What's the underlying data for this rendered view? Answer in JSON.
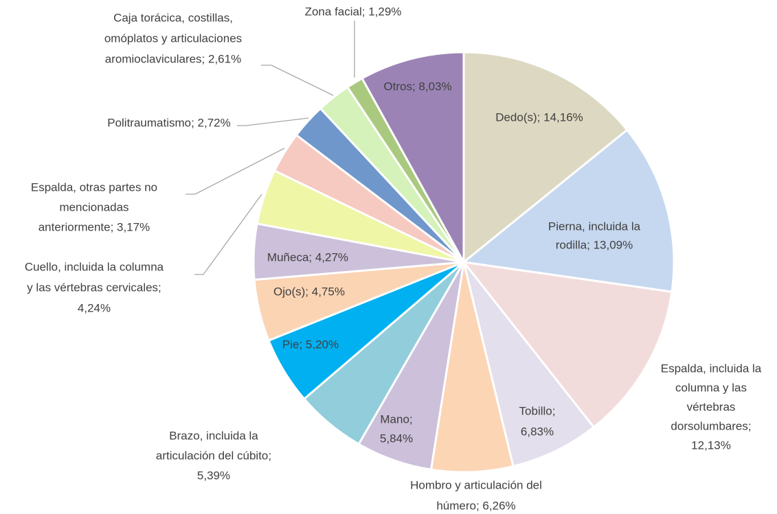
{
  "chart_data": {
    "type": "pie",
    "values": [
      14.16,
      13.09,
      12.13,
      6.83,
      6.26,
      5.84,
      5.39,
      5.2,
      4.75,
      4.27,
      4.24,
      3.17,
      2.72,
      2.61,
      1.29,
      8.03
    ],
    "value_labels": [
      [
        "Dedo(s); 14,16%"
      ],
      [
        "Pierna, incluida la",
        "rodilla; 13,09%"
      ],
      [
        "Espalda, incluida la",
        "columna y las",
        "vértebras",
        "dorsolumbares;",
        "12,13%"
      ],
      [
        "Tobillo;",
        "6,83%"
      ],
      [
        "Hombro y articulación del",
        "húmero; 6,26%"
      ],
      [
        "Mano;",
        "5,84%"
      ],
      [
        "Brazo, incluida la",
        "articulación del cúbito;",
        "5,39%"
      ],
      [
        "Pie; 5,20%"
      ],
      [
        "Ojo(s); 4,75%"
      ],
      [
        "Muñeca; 4,27%"
      ],
      [
        "Cuello, incluida la columna",
        "y las vértebras cervicales;",
        "4,24%"
      ],
      [
        "Espalda, otras partes no",
        "mencionadas",
        "anteriormente; 3,17%"
      ],
      [
        "Politraumatismo; 2,72%"
      ],
      [
        "Caja torácica, costillas,",
        "omóplatos y articulaciones",
        "aromioclaviculares; 2,61%"
      ],
      [
        "Zona facial; 1,29%"
      ],
      [
        "Otros; 8,03%"
      ]
    ],
    "colors": [
      "#ddd8c1",
      "#c6d8ef",
      "#f2dcdb",
      "#e4dfec",
      "#fcd5b5",
      "#ccc0da",
      "#92cddc",
      "#00b0f0",
      "#fbd4b4",
      "#ccc0da",
      "#eff6a6",
      "#f6c9c1",
      "#6f97cb",
      "#d4f2ba",
      "#a9c97f",
      "#9b84b5"
    ]
  }
}
